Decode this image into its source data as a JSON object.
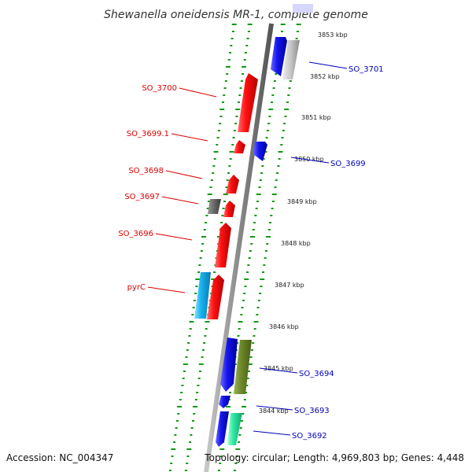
{
  "title": "Shewanella oneidensis MR-1, complete genome",
  "footer": {
    "accession": "Accession: NC_004347",
    "topology": "Topology: circular; Length: 4,969,803 bp; Genes: 4,448"
  },
  "colors": {
    "forward_red": "#ee0000",
    "reverse_blue": "#1010dd",
    "blue_label": "#0000bb",
    "red_label": "#dd0000",
    "track_dots": "#119911",
    "backbone": "#888888",
    "cyan": "#18b4f0",
    "olive": "#6f8a2a",
    "mint": "#2ee8a0",
    "gray_feature": "#bbbbbb",
    "dark_gray_feature": "#666666"
  },
  "kbp_ticks": [
    "3853 kbp",
    "3852 kbp",
    "3851 kbp",
    "3850 kbp",
    "3849 kbp",
    "3848 kbp",
    "3847 kbp",
    "3846 kbp",
    "3845 kbp",
    "3844 kbp"
  ],
  "gene_labels_left": [
    "SO_3700",
    "SO_3699.1",
    "SO_3698",
    "SO_3697",
    "SO_3696",
    "pyrC"
  ],
  "gene_labels_right": [
    "SO_3701",
    "SO_3699",
    "SO_3694",
    "SO_3693",
    "SO_3692"
  ]
}
